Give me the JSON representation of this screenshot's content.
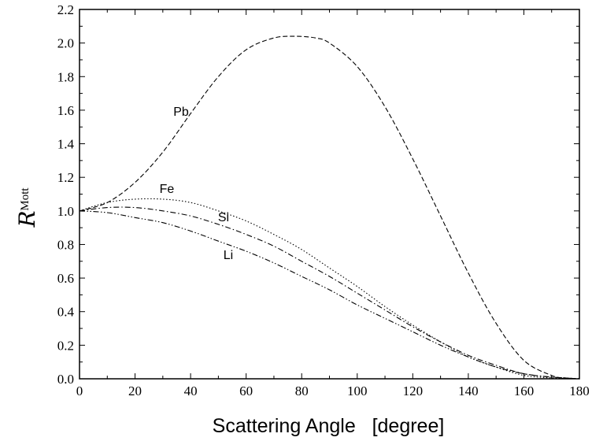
{
  "chart_data": {
    "type": "line",
    "title": "",
    "xlabel": "Scattering Angle   [degree]",
    "ylabel": {
      "main": "R",
      "superscript": "Mott"
    },
    "xlim": [
      0,
      180
    ],
    "ylim": [
      0.0,
      2.2
    ],
    "x_ticks": [
      "0",
      "20",
      "40",
      "60",
      "80",
      "100",
      "120",
      "140",
      "160",
      "180"
    ],
    "y_ticks": [
      "0.0",
      "0.2",
      "0.4",
      "0.6",
      "0.8",
      "1.0",
      "1.2",
      "1.4",
      "1.6",
      "1.8",
      "2.0",
      "2.2"
    ],
    "grid": false,
    "legend": "none",
    "series": [
      {
        "name": "Pb",
        "style": "dashed",
        "x": [
          0,
          10,
          20,
          30,
          40,
          50,
          60,
          70,
          78,
          85,
          90,
          100,
          110,
          120,
          130,
          140,
          150,
          160,
          170,
          175,
          180
        ],
        "y": [
          1.0,
          1.05,
          1.17,
          1.35,
          1.58,
          1.8,
          1.96,
          2.03,
          2.04,
          2.03,
          2.0,
          1.86,
          1.62,
          1.31,
          0.97,
          0.63,
          0.33,
          0.11,
          0.02,
          0.005,
          0.0
        ]
      },
      {
        "name": "Fe",
        "style": "dotted",
        "x": [
          0,
          10,
          20,
          30,
          40,
          50,
          60,
          70,
          80,
          90,
          100,
          110,
          120,
          130,
          140,
          150,
          160,
          170,
          180
        ],
        "y": [
          1.0,
          1.05,
          1.07,
          1.07,
          1.05,
          1.0,
          0.94,
          0.86,
          0.77,
          0.66,
          0.55,
          0.43,
          0.32,
          0.22,
          0.13,
          0.07,
          0.02,
          0.005,
          0.0
        ]
      },
      {
        "name": "Si",
        "style": "dash-dot",
        "x": [
          0,
          10,
          20,
          30,
          40,
          50,
          60,
          70,
          80,
          90,
          100,
          110,
          120,
          130,
          140,
          150,
          160,
          170,
          180
        ],
        "y": [
          1.0,
          1.02,
          1.02,
          1.0,
          0.97,
          0.92,
          0.86,
          0.79,
          0.7,
          0.61,
          0.51,
          0.41,
          0.31,
          0.22,
          0.14,
          0.08,
          0.03,
          0.01,
          0.0
        ]
      },
      {
        "name": "Li",
        "style": "dash-dot-dot",
        "x": [
          0,
          10,
          20,
          30,
          40,
          50,
          60,
          70,
          80,
          90,
          100,
          110,
          120,
          130,
          140,
          150,
          160,
          170,
          180
        ],
        "y": [
          1.0,
          0.99,
          0.96,
          0.93,
          0.88,
          0.82,
          0.76,
          0.69,
          0.61,
          0.53,
          0.44,
          0.36,
          0.28,
          0.2,
          0.13,
          0.07,
          0.03,
          0.01,
          0.0
        ]
      }
    ],
    "annotations": [
      {
        "text": "Pb",
        "series": "Pb"
      },
      {
        "text": "Fe",
        "series": "Fe"
      },
      {
        "text": "Si",
        "series": "Si"
      },
      {
        "text": "Li",
        "series": "Li"
      }
    ]
  }
}
